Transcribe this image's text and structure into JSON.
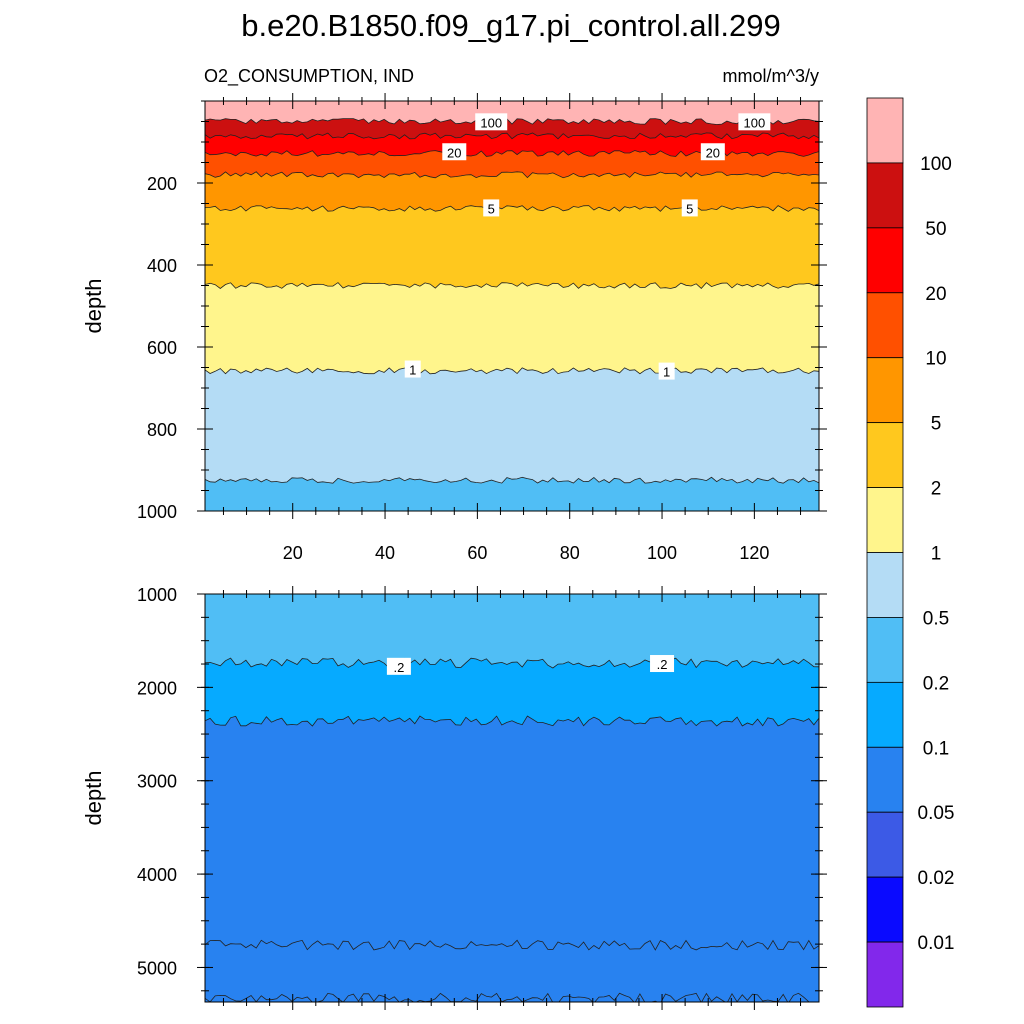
{
  "chart_data": {
    "type": "contour",
    "title": "b.e20.B1850.f09_g17.pi_control.all.299",
    "subtitle_left": "O2_CONSUMPTION, IND",
    "subtitle_right": "mmol/m^3/y",
    "colorbar": {
      "colors": [
        "#ffb4b4",
        "#cc1010",
        "#ff0000",
        "#ff5000",
        "#ff9600",
        "#ffc81e",
        "#fff58c",
        "#b4dcf5",
        "#50bef5",
        "#06aaff",
        "#2882f0",
        "#3c5ae6",
        "#0a0aff",
        "#8228eb"
      ],
      "levels": [
        "100",
        "50",
        "20",
        "10",
        "5",
        "2",
        "1",
        "0.5",
        "0.2",
        "0.1",
        "0.05",
        "0.02",
        "0.01"
      ]
    },
    "panels": [
      {
        "name": "upper",
        "ylabel": "depth",
        "xlim": [
          1,
          134
        ],
        "ylim": [
          1000,
          0
        ],
        "xticks": [
          "20",
          "40",
          "60",
          "80",
          "100",
          "120"
        ],
        "yticks": [
          "200",
          "400",
          "600",
          "800",
          "1000"
        ],
        "contours": [
          {
            "value": 100,
            "depth": 50
          },
          {
            "value": 50,
            "depth": 85
          },
          {
            "value": 20,
            "depth": 128
          },
          {
            "value": 10,
            "depth": 180
          },
          {
            "value": 5,
            "depth": 262
          },
          {
            "value": 2,
            "depth": 450
          },
          {
            "value": 1,
            "depth": 658
          },
          {
            "value": 0.5,
            "depth": 925
          }
        ],
        "labels": [
          {
            "text": "100",
            "x": 63,
            "depth": 52
          },
          {
            "text": "100",
            "x": 120,
            "depth": 52
          },
          {
            "text": "20",
            "x": 55,
            "depth": 125
          },
          {
            "text": "20",
            "x": 111,
            "depth": 125
          },
          {
            "text": "5",
            "x": 63,
            "depth": 262
          },
          {
            "text": "5",
            "x": 106,
            "depth": 262
          },
          {
            "text": "1",
            "x": 46,
            "depth": 655
          },
          {
            "text": "1",
            "x": 101,
            "depth": 660
          }
        ]
      },
      {
        "name": "lower",
        "ylabel": "depth",
        "xlim": [
          1,
          134
        ],
        "ylim": [
          5370,
          1000
        ],
        "xticks": [
          "",
          "",
          "",
          "",
          "",
          ""
        ],
        "yticks": [
          "1000",
          "2000",
          "3000",
          "4000",
          "5000"
        ],
        "contours": [
          {
            "value": 0.2,
            "depth": 1740
          },
          {
            "value": 0.1,
            "depth": 2360
          },
          {
            "value": 0.05,
            "depth": 4760
          },
          {
            "value": 0.1,
            "depth": 5330
          }
        ],
        "labels": [
          {
            "text": ".2",
            "x": 43,
            "depth": 1780
          },
          {
            "text": ".2",
            "x": 100,
            "depth": 1750
          }
        ]
      }
    ]
  }
}
